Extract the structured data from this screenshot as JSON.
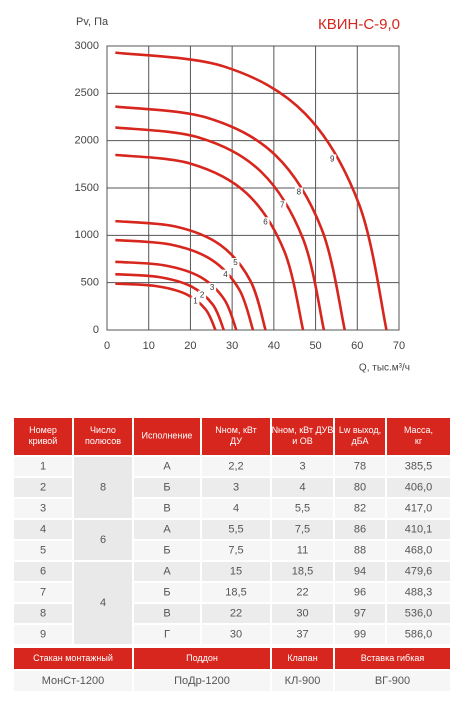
{
  "chart_data": {
    "type": "line",
    "title": "КВИН-С-9,0",
    "y_label": "Pv, Па",
    "x_label": "Q, тыс.м³/ч",
    "xlim": [
      0,
      70
    ],
    "xticks": [
      0,
      10,
      20,
      30,
      40,
      50,
      60,
      70
    ],
    "ylim": [
      0,
      3000
    ],
    "yticks": [
      0,
      500,
      1000,
      1500,
      2000,
      2500,
      3000
    ],
    "grid": true,
    "series": [
      {
        "name": "1",
        "color": "#d7261e",
        "x": [
          2,
          11.6,
          18.8,
          23.6,
          26
        ],
        "values": [
          490,
          465,
          382,
          220,
          0
        ]
      },
      {
        "name": "2",
        "color": "#d7261e",
        "x": [
          2,
          12.4,
          20.2,
          25.4,
          28
        ],
        "values": [
          590,
          560,
          460,
          266,
          0
        ]
      },
      {
        "name": "3",
        "color": "#d7261e",
        "x": [
          2,
          13.6,
          22.3,
          28.1,
          31
        ],
        "values": [
          720,
          684,
          562,
          324,
          0
        ]
      },
      {
        "name": "4",
        "color": "#d7261e",
        "x": [
          2,
          15.2,
          25.1,
          31.7,
          35
        ],
        "values": [
          950,
          903,
          741,
          428,
          0
        ]
      },
      {
        "name": "5",
        "color": "#d7261e",
        "x": [
          2,
          16.4,
          27.2,
          34.4,
          38
        ],
        "values": [
          1150,
          1093,
          897,
          518,
          0
        ]
      },
      {
        "name": "6",
        "color": "#d7261e",
        "x": [
          2,
          20,
          33.5,
          42.5,
          47
        ],
        "values": [
          1850,
          1758,
          1443,
          833,
          0
        ]
      },
      {
        "name": "7",
        "color": "#d7261e",
        "x": [
          2,
          22,
          37,
          47,
          52
        ],
        "values": [
          2140,
          2033,
          1669,
          963,
          0
        ]
      },
      {
        "name": "8",
        "color": "#d7261e",
        "x": [
          2,
          24,
          40.5,
          51.5,
          57
        ],
        "values": [
          2360,
          2242,
          1841,
          1062,
          0
        ]
      },
      {
        "name": "9",
        "color": "#d7261e",
        "x": [
          2,
          28,
          47.5,
          60.5,
          67
        ],
        "values": [
          2930,
          2784,
          2285,
          1319,
          0
        ]
      }
    ]
  },
  "table": {
    "header": [
      "Номер кривой",
      "Число полюсов",
      "Исполнение",
      "Nном, кВт ДУ",
      "Nном, кВт ДУВ и ОВ",
      "Lw выход, дБА",
      "Масса, кг"
    ],
    "groups": [
      {
        "poles": "8",
        "rows": [
          [
            "1",
            "А",
            "2,2",
            "3",
            "78",
            "385,5"
          ],
          [
            "2",
            "Б",
            "3",
            "4",
            "80",
            "406,0"
          ],
          [
            "3",
            "В",
            "4",
            "5,5",
            "82",
            "417,0"
          ]
        ]
      },
      {
        "poles": "6",
        "rows": [
          [
            "4",
            "А",
            "5,5",
            "7,5",
            "86",
            "410,1"
          ],
          [
            "5",
            "Б",
            "7,5",
            "11",
            "88",
            "468,0"
          ]
        ]
      },
      {
        "poles": "4",
        "rows": [
          [
            "6",
            "А",
            "15",
            "18,5",
            "94",
            "479,6"
          ],
          [
            "7",
            "Б",
            "18,5",
            "22",
            "96",
            "488,3"
          ],
          [
            "8",
            "В",
            "22",
            "30",
            "97",
            "536,0"
          ],
          [
            "9",
            "Г",
            "30",
            "37",
            "99",
            "586,0"
          ]
        ]
      }
    ]
  },
  "accessories": {
    "headers": [
      "Стакан монтажный",
      "Поддон",
      "Клапан",
      "Вставка гибкая"
    ],
    "values": [
      "МонСт-1200",
      "ПоДр-1200",
      "КЛ-900",
      "ВГ-900"
    ]
  }
}
